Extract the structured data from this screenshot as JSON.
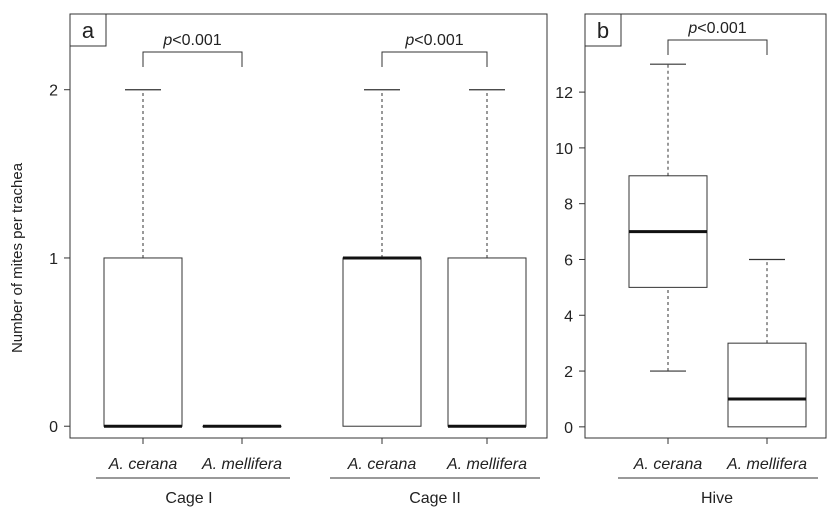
{
  "ylabel": "Number of mites per trachea",
  "chart_data": [
    {
      "type": "box",
      "panel_label": "a",
      "ylabel": "Number of mites per trachea",
      "ylim": [
        -0.07,
        2.45
      ],
      "yticks": [
        0,
        1,
        2
      ],
      "boxes": [
        {
          "category": "A. cerana",
          "group": "Cage I",
          "min": 0,
          "q1": 0,
          "median": 0,
          "q3": 1,
          "max": 2
        },
        {
          "category": "A. mellifera",
          "group": "Cage I",
          "min": 0,
          "q1": 0,
          "median": 0,
          "q3": 0,
          "max": 0
        },
        {
          "category": "A. cerana",
          "group": "Cage II",
          "min": 0,
          "q1": 0,
          "median": 1,
          "q3": 1,
          "max": 2
        },
        {
          "category": "A. mellifera",
          "group": "Cage II",
          "min": 0,
          "q1": 0,
          "median": 0,
          "q3": 1,
          "max": 2
        }
      ],
      "groups": [
        "Cage I",
        "Cage II"
      ],
      "annotations": [
        {
          "text_italic": "p",
          "text": "<0.001",
          "from": 0,
          "to": 1
        },
        {
          "text_italic": "p",
          "text": "<0.001",
          "from": 2,
          "to": 3
        }
      ]
    },
    {
      "type": "box",
      "panel_label": "b",
      "ylim": [
        -0.4,
        14.8
      ],
      "yticks": [
        0,
        2,
        4,
        6,
        8,
        10,
        12
      ],
      "boxes": [
        {
          "category": "A. cerana",
          "group": "Hive",
          "min": 2,
          "q1": 5,
          "median": 7,
          "q3": 9,
          "max": 13
        },
        {
          "category": "A. mellifera",
          "group": "Hive",
          "min": 0,
          "q1": 0,
          "median": 1,
          "q3": 3,
          "max": 6
        }
      ],
      "groups": [
        "Hive"
      ],
      "annotations": [
        {
          "text_italic": "p",
          "text": "<0.001",
          "from": 0,
          "to": 1
        }
      ]
    }
  ]
}
